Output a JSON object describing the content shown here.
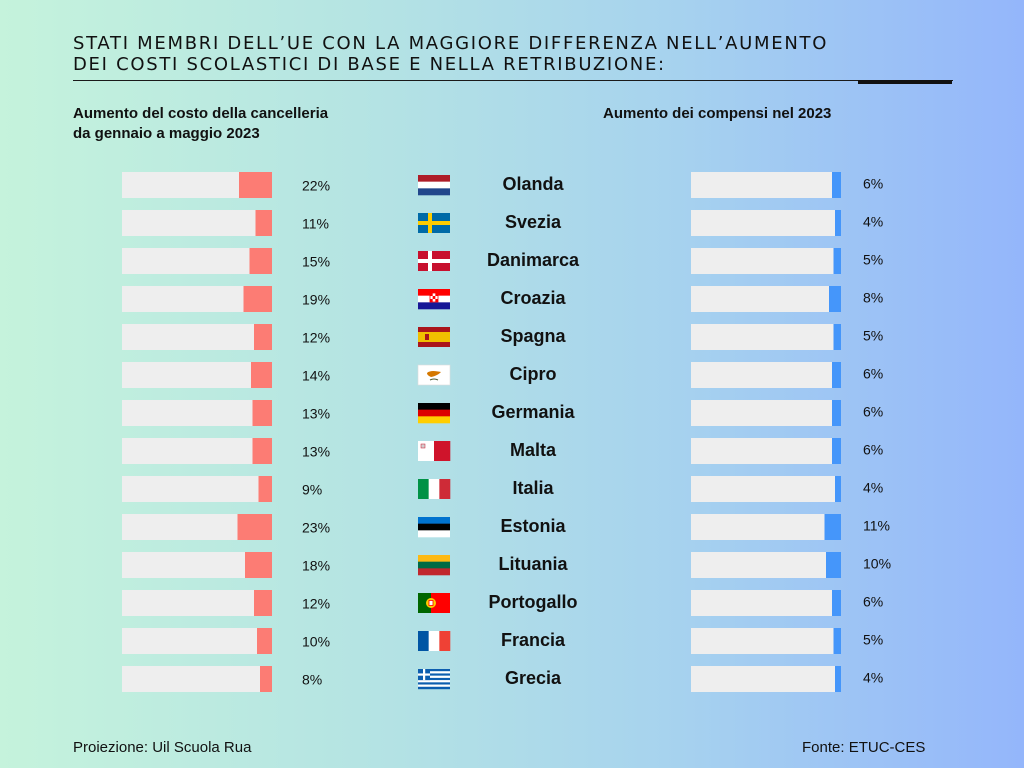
{
  "title": {
    "line1": "STATI MEMBRI DELL’UE CON LA MAGGIORE DIFFERENZA NELL’AUMENTO",
    "line2": "DEI COSTI SCOLASTICI DI BASE E NELLA RETRIBUZIONE:"
  },
  "left_header": {
    "line1": "Aumento del costo della cancelleria",
    "line2": "da gennaio a maggio 2023"
  },
  "right_header": "Aumento dei compensi nel 2023",
  "footer": {
    "projection": "Proiezione: Uil Scuola Rua",
    "source": "Fonte: ETUC-CES"
  },
  "colors": {
    "track": "#eeeeee",
    "stationery_bar": "#fc7c74",
    "salary_bar": "#4596fa"
  },
  "chart_data": {
    "type": "bar",
    "categories": [
      "Olanda",
      "Svezia",
      "Danimarca",
      "Croazia",
      "Spagna",
      "Cipro",
      "Germania",
      "Malta",
      "Italia",
      "Estonia",
      "Lituania",
      "Portogallo",
      "Francia",
      "Grecia"
    ],
    "flag_icons": [
      "flag-netherlands",
      "flag-sweden",
      "flag-denmark",
      "flag-croatia",
      "flag-spain",
      "flag-cyprus",
      "flag-germany",
      "flag-malta",
      "flag-italy",
      "flag-estonia",
      "flag-lithuania",
      "flag-portugal",
      "flag-france",
      "flag-greece"
    ],
    "series": [
      {
        "name": "Aumento del costo della cancelleria da gennaio a maggio 2023",
        "values": [
          22,
          11,
          15,
          19,
          12,
          14,
          13,
          13,
          9,
          23,
          18,
          12,
          10,
          8
        ],
        "labels": [
          "22%",
          "11%",
          "15%",
          "19%",
          "12%",
          "14%",
          "13%",
          "13%",
          "9%",
          "23%",
          "18%",
          "12%",
          "10%",
          "8%"
        ]
      },
      {
        "name": "Aumento dei compensi nel 2023",
        "values": [
          6,
          4,
          5,
          8,
          5,
          6,
          6,
          6,
          4,
          11,
          10,
          6,
          5,
          4
        ],
        "labels": [
          "6%",
          "4%",
          "5%",
          "8%",
          "5%",
          "6%",
          "6%",
          "6%",
          "4%",
          "11%",
          "10%",
          "6%",
          "5%",
          "4%"
        ]
      }
    ],
    "xlim": [
      0,
      100
    ],
    "grid": false,
    "legend": "none"
  }
}
